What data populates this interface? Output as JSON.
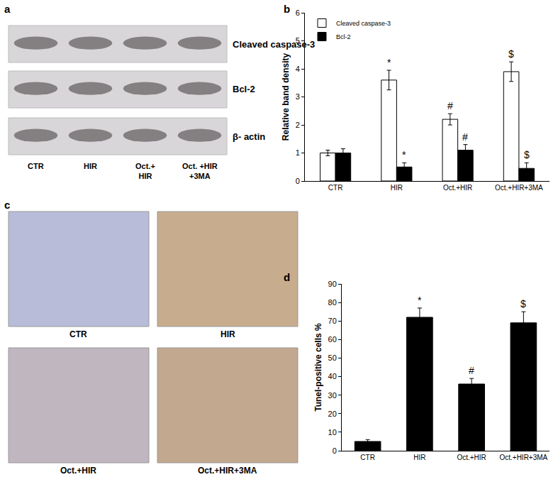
{
  "chart_data": [
    {
      "type": "bar",
      "panel": "b",
      "categories": [
        "CTR",
        "HIR",
        "Oct.+HIR",
        "Oct.+HIR+3MA"
      ],
      "y_label": "Relative band density",
      "ylim": [
        0,
        6
      ],
      "yticks": [
        0,
        1,
        2,
        3,
        4,
        5,
        6
      ],
      "grid": false,
      "legend": "top-left",
      "series": [
        {
          "name": "Cleaved caspase-3",
          "color": "#ffffff",
          "values": [
            1.0,
            3.6,
            2.2,
            3.9
          ],
          "errors": [
            0.1,
            0.35,
            0.2,
            0.35
          ],
          "significance": [
            null,
            "*",
            "#",
            "$"
          ]
        },
        {
          "name": "Bcl-2",
          "color": "#000000",
          "values": [
            1.0,
            0.5,
            1.1,
            0.45
          ],
          "errors": [
            0.15,
            0.15,
            0.2,
            0.2
          ],
          "significance": [
            null,
            "*",
            "#",
            "$"
          ]
        }
      ]
    },
    {
      "type": "bar",
      "panel": "d",
      "categories": [
        "CTR",
        "HIR",
        "Oct.+HIR",
        "Oct.+HIR+3MA"
      ],
      "y_label": "Tunel-positive cells %",
      "ylim": [
        0,
        90
      ],
      "yticks": [
        0,
        10,
        20,
        30,
        40,
        50,
        60,
        70,
        80,
        90
      ],
      "grid": false,
      "color": "#000000",
      "values": [
        5,
        72,
        36,
        69
      ],
      "errors": [
        1,
        5,
        3,
        6
      ],
      "significance": [
        null,
        "*",
        "#",
        "$"
      ]
    }
  ],
  "blot": {
    "panel": "a",
    "rows": [
      "Cleaved caspase-3",
      "Bcl-2",
      "β- actin"
    ],
    "lanes": [
      [
        "CTR"
      ],
      [
        "HIR"
      ],
      [
        "Oct.+",
        "HIR"
      ],
      [
        "Oct. +HIR",
        "+3MA"
      ]
    ]
  },
  "micrographs": {
    "panel": "c",
    "images": [
      "CTR",
      "HIR",
      "Oct.+HIR",
      "Oct.+HIR+3MA"
    ]
  }
}
